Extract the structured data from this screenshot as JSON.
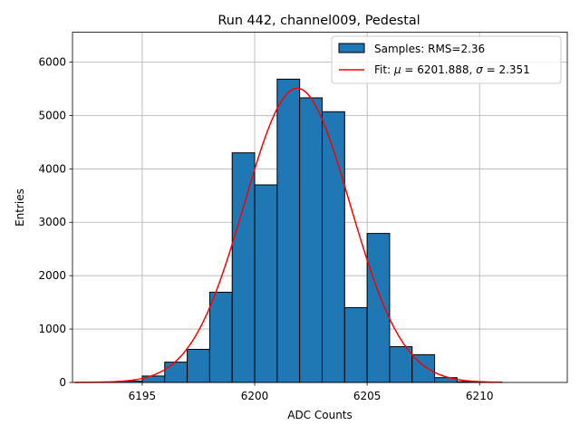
{
  "chart_data": {
    "type": "bar",
    "title": "Run 442, channel009, Pedestal",
    "xlabel": "ADC Counts",
    "ylabel": "Entries",
    "xlim": [
      6191.9,
      6213.9
    ],
    "ylim": [
      0,
      6560
    ],
    "grid": true,
    "legend_position": "top-right",
    "x_ticks": [
      6195,
      6200,
      6205,
      6210
    ],
    "y_ticks": [
      0,
      1000,
      2000,
      3000,
      4000,
      5000,
      6000
    ],
    "histogram": {
      "name": "Samples: RMS=2.36",
      "bin_edges": [
        6192,
        6193,
        6194,
        6195,
        6196,
        6197,
        6198,
        6199,
        6200,
        6201,
        6202,
        6203,
        6204,
        6205,
        6206,
        6207,
        6208,
        6209,
        6210,
        6211
      ],
      "values": [
        0,
        5,
        25,
        120,
        380,
        620,
        1690,
        4300,
        3700,
        5680,
        5330,
        5070,
        1400,
        2790,
        670,
        520,
        90,
        15,
        3
      ],
      "color": "#1f77b4",
      "edge_color": "#000000"
    },
    "fit": {
      "name": "Fit: $\\mu$ = 6201.888, $\\sigma$ = 2.351",
      "mu": 6201.888,
      "sigma": 2.351,
      "amplitude": 5510,
      "x_range": [
        6192,
        6211
      ],
      "color": "#ff0000"
    },
    "legend": [
      {
        "label_prefix": "Samples: RMS=2.36",
        "kind": "patch"
      },
      {
        "label_prefix": "Fit: ",
        "mu_symbol": "μ",
        "mu_text": " = 6201.888, ",
        "sigma_symbol": "σ",
        "sigma_text": " = 2.351",
        "kind": "line"
      }
    ]
  }
}
